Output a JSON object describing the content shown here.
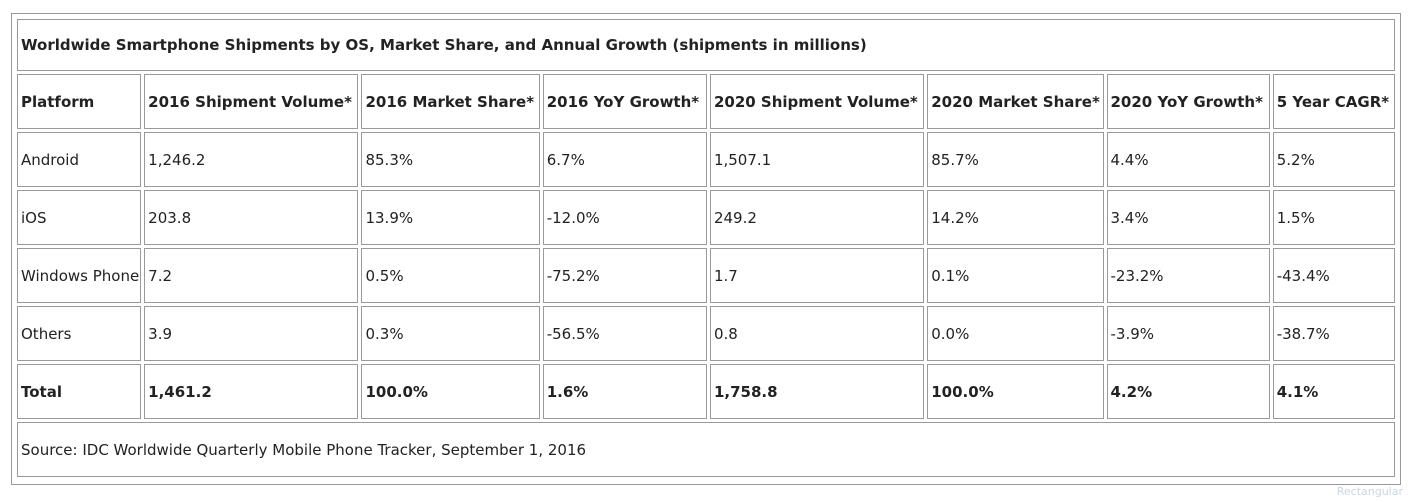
{
  "chart_data": {
    "type": "table",
    "title": "Worldwide Smartphone Shipments by OS, Market Share, and Annual Growth (shipments in millions)",
    "columns": [
      "Platform",
      "2016 Shipment Volume*",
      "2016 Market Share*",
      "2016 YoY Growth*",
      "2020 Shipment Volume*",
      "2020 Market Share*",
      "2020 YoY Growth*",
      "5 Year CAGR*"
    ],
    "rows": [
      [
        "Android",
        "1,246.2",
        "85.3%",
        "6.7%",
        "1,507.1",
        "85.7%",
        "4.4%",
        "5.2%"
      ],
      [
        "iOS",
        "203.8",
        "13.9%",
        "-12.0%",
        "249.2",
        "14.2%",
        "3.4%",
        "1.5%"
      ],
      [
        "Windows Phone",
        "7.2",
        "0.5%",
        "-75.2%",
        "1.7",
        "0.1%",
        "-23.2%",
        "-43.4%"
      ],
      [
        "Others",
        "3.9",
        "0.3%",
        "-56.5%",
        "0.8",
        "0.0%",
        "-3.9%",
        "-38.7%"
      ]
    ],
    "total": [
      "Total",
      "1,461.2",
      "100.0%",
      "1.6%",
      "1,758.8",
      "100.0%",
      "4.2%",
      "4.1%"
    ],
    "source": "Source: IDC Worldwide Quarterly Mobile Phone Tracker, September 1, 2016"
  },
  "watermark": "Rectangular"
}
